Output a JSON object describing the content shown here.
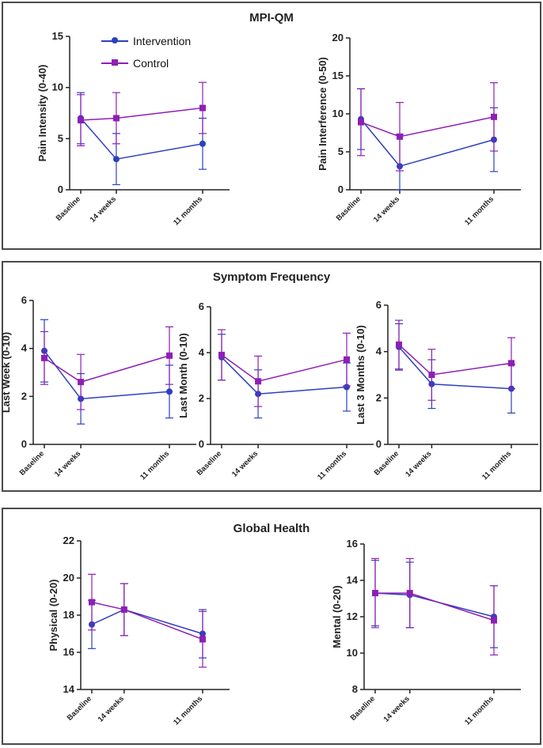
{
  "colors": {
    "intervention": "#2e3fbf",
    "control": "#8e1fb5"
  },
  "legend": {
    "intervention_label": "Intervention",
    "control_label": "Control"
  },
  "panels": [
    {
      "title": "MPI-QM"
    },
    {
      "title": "Symptom Frequency"
    },
    {
      "title": "Global Health"
    }
  ],
  "chart_data": [
    {
      "type": "line",
      "panel": 0,
      "ylabel": "Pain Intensity (0-40)",
      "ylim": [
        0,
        15
      ],
      "yticks": [
        0,
        5,
        10,
        15
      ],
      "categories": [
        "Baseline",
        "14 weeks",
        "11 months"
      ],
      "x": [
        0,
        14,
        48
      ],
      "series": [
        {
          "name": "Intervention",
          "values": [
            7.0,
            3.0,
            4.5
          ],
          "err": [
            2.5,
            2.5,
            2.5
          ]
        },
        {
          "name": "Control",
          "values": [
            6.8,
            7.0,
            8.0
          ],
          "err": [
            2.5,
            2.5,
            2.5
          ]
        }
      ]
    },
    {
      "type": "line",
      "panel": 0,
      "ylabel": "Pain Interference (0-50)",
      "ylim": [
        0,
        20
      ],
      "yticks": [
        0,
        5,
        10,
        15,
        20
      ],
      "categories": [
        "Baseline",
        "14 weeks",
        "11 months"
      ],
      "x": [
        0,
        14,
        48
      ],
      "series": [
        {
          "name": "Intervention",
          "values": [
            9.3,
            3.1,
            6.6
          ],
          "err": [
            4.0,
            4.2,
            4.2
          ]
        },
        {
          "name": "Control",
          "values": [
            8.9,
            7.0,
            9.6
          ],
          "err": [
            4.4,
            4.5,
            4.5
          ]
        }
      ]
    },
    {
      "type": "line",
      "panel": 1,
      "ylabel": "Last Week (0-10)",
      "ylim": [
        0,
        6
      ],
      "yticks": [
        0,
        2,
        4,
        6
      ],
      "categories": [
        "Baseline",
        "14 weeks",
        "11 months"
      ],
      "x": [
        0,
        14,
        48
      ],
      "series": [
        {
          "name": "Intervention",
          "values": [
            3.9,
            1.9,
            2.2
          ],
          "err": [
            1.3,
            1.05,
            1.1
          ]
        },
        {
          "name": "Control",
          "values": [
            3.6,
            2.6,
            3.7
          ],
          "err": [
            1.1,
            1.15,
            1.2
          ]
        }
      ]
    },
    {
      "type": "line",
      "panel": 1,
      "ylabel": "Last Month (0-10)",
      "ylim": [
        0,
        6
      ],
      "yticks": [
        0,
        2,
        4,
        6
      ],
      "categories": [
        "Baseline",
        "14 weeks",
        "11 months"
      ],
      "x": [
        0,
        14,
        48
      ],
      "series": [
        {
          "name": "Intervention",
          "values": [
            3.8,
            2.2,
            2.5
          ],
          "err": [
            1.0,
            1.05,
            1.05
          ]
        },
        {
          "name": "Control",
          "values": [
            3.9,
            2.75,
            3.7
          ],
          "err": [
            1.1,
            1.1,
            1.15
          ]
        }
      ]
    },
    {
      "type": "line",
      "panel": 1,
      "ylabel": "Last 3 Months (0-10)",
      "ylim": [
        0,
        6
      ],
      "yticks": [
        0,
        2,
        4,
        6
      ],
      "categories": [
        "Baseline",
        "14 weeks",
        "11 months"
      ],
      "x": [
        0,
        14,
        48
      ],
      "series": [
        {
          "name": "Intervention",
          "values": [
            4.2,
            2.6,
            2.4
          ],
          "err": [
            1.0,
            1.05,
            1.05
          ]
        },
        {
          "name": "Control",
          "values": [
            4.3,
            3.0,
            3.5
          ],
          "err": [
            1.05,
            1.1,
            1.1
          ]
        }
      ]
    },
    {
      "type": "line",
      "panel": 2,
      "ylabel": "Physical (0-20)",
      "ylim": [
        14,
        22
      ],
      "yticks": [
        14,
        16,
        18,
        20,
        22
      ],
      "categories": [
        "Baseline",
        "14 weeks",
        "11 months"
      ],
      "x": [
        0,
        14,
        48
      ],
      "series": [
        {
          "name": "Intervention",
          "values": [
            17.5,
            18.3,
            17.0
          ],
          "err": [
            1.3,
            1.4,
            1.3
          ]
        },
        {
          "name": "Control",
          "values": [
            18.7,
            18.3,
            16.7
          ],
          "err": [
            1.5,
            1.4,
            1.5
          ]
        }
      ]
    },
    {
      "type": "line",
      "panel": 2,
      "ylabel": "Mental (0-20)",
      "ylim": [
        8,
        16
      ],
      "yticks": [
        8,
        10,
        12,
        14,
        16
      ],
      "categories": [
        "Baseline",
        "14 weeks",
        "11 months"
      ],
      "x": [
        0,
        14,
        48
      ],
      "series": [
        {
          "name": "Intervention",
          "values": [
            13.3,
            13.2,
            12.0
          ],
          "err": [
            1.8,
            1.8,
            1.7
          ]
        },
        {
          "name": "Control",
          "values": [
            13.3,
            13.3,
            11.8
          ],
          "err": [
            1.9,
            1.9,
            1.9
          ]
        }
      ]
    }
  ]
}
